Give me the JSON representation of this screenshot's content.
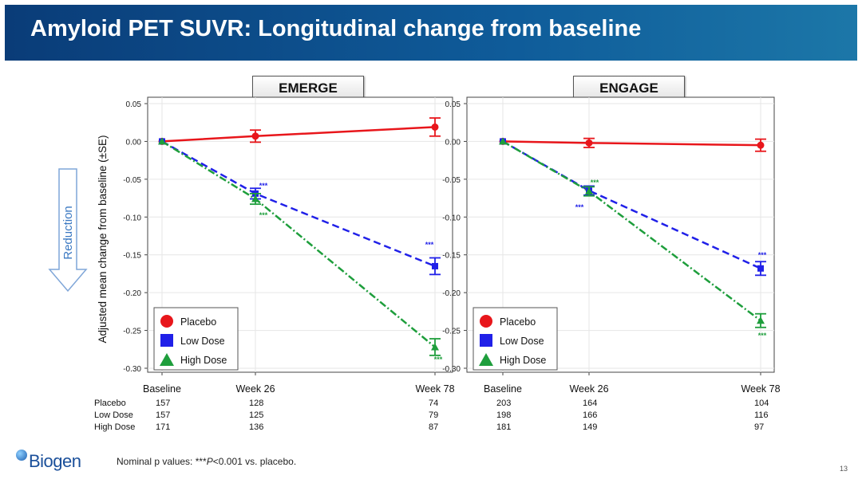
{
  "header": {
    "title": "Amyloid PET SUVR: Longitudinal change from baseline"
  },
  "ylabel": "Adjusted mean change from baseline (±SE)",
  "reduction_label": "Reduction",
  "footnote": {
    "prefix": "Nominal p values: ***",
    "p": "P",
    "suffix": "<0.001 vs. placebo."
  },
  "page_number": "13",
  "logo": "Biogen",
  "colors": {
    "placebo": "#e8161b",
    "low": "#2020e8",
    "high": "#1e9e3c"
  },
  "legend": [
    "Placebo",
    "Low Dose",
    "High Dose"
  ],
  "n_row_labels": [
    "Placebo",
    "Low Dose",
    "High Dose"
  ],
  "chart_data": [
    {
      "type": "line",
      "title": "EMERGE",
      "x": [
        "Baseline",
        "Week 26",
        "Week 78"
      ],
      "ylim": [
        -0.3,
        0.05
      ],
      "yticks": [
        "0.05",
        "0.00",
        "-0.05",
        "-0.10",
        "-0.15",
        "-0.20",
        "-0.25",
        "-0.30"
      ],
      "ytick_values": [
        0.05,
        0.0,
        -0.05,
        -0.1,
        -0.15,
        -0.2,
        -0.25,
        -0.3
      ],
      "grid": true,
      "legend_position": "bottom-left",
      "series": [
        {
          "name": "Placebo",
          "values": [
            0.0,
            0.007,
            0.019
          ],
          "se": [
            0,
            0.008,
            0.012
          ],
          "sig": [
            "",
            "",
            ""
          ]
        },
        {
          "name": "Low Dose",
          "values": [
            0.0,
            -0.069,
            -0.165
          ],
          "se": [
            0,
            0.007,
            0.011
          ],
          "sig": [
            "",
            "***",
            "***"
          ]
        },
        {
          "name": "High Dose",
          "values": [
            0.0,
            -0.076,
            -0.272
          ],
          "se": [
            0,
            0.007,
            0.011
          ],
          "sig": [
            "",
            "***",
            "***"
          ]
        }
      ],
      "n_table": {
        "Placebo": [
          "157",
          "128",
          "74"
        ],
        "Low Dose": [
          "157",
          "125",
          "79"
        ],
        "High Dose": [
          "171",
          "136",
          "87"
        ]
      }
    },
    {
      "type": "line",
      "title": "ENGAGE",
      "x": [
        "Baseline",
        "Week 26",
        "Week 78"
      ],
      "ylim": [
        -0.3,
        0.05
      ],
      "yticks": [
        "0.05",
        "0.00",
        "-0.05",
        "-0.10",
        "-0.15",
        "-0.20",
        "-0.25",
        "-0.30"
      ],
      "ytick_values": [
        0.05,
        0.0,
        -0.05,
        -0.1,
        -0.15,
        -0.2,
        -0.25,
        -0.3
      ],
      "grid": true,
      "legend_position": "bottom-left",
      "series": [
        {
          "name": "Placebo",
          "values": [
            0.0,
            -0.002,
            -0.005
          ],
          "se": [
            0,
            0.006,
            0.008
          ],
          "sig": [
            "",
            "",
            ""
          ]
        },
        {
          "name": "Low Dose",
          "values": [
            0.0,
            -0.065,
            -0.168
          ],
          "se": [
            0,
            0.006,
            0.009
          ],
          "sig": [
            "",
            "***",
            "***"
          ]
        },
        {
          "name": "High Dose",
          "values": [
            0.0,
            -0.066,
            -0.237
          ],
          "se": [
            0,
            0.006,
            0.009
          ],
          "sig": [
            "",
            "***",
            "***"
          ]
        }
      ],
      "n_table": {
        "Placebo": [
          "203",
          "164",
          "104"
        ],
        "Low Dose": [
          "198",
          "166",
          "116"
        ],
        "High Dose": [
          "181",
          "149",
          "97"
        ]
      }
    }
  ]
}
